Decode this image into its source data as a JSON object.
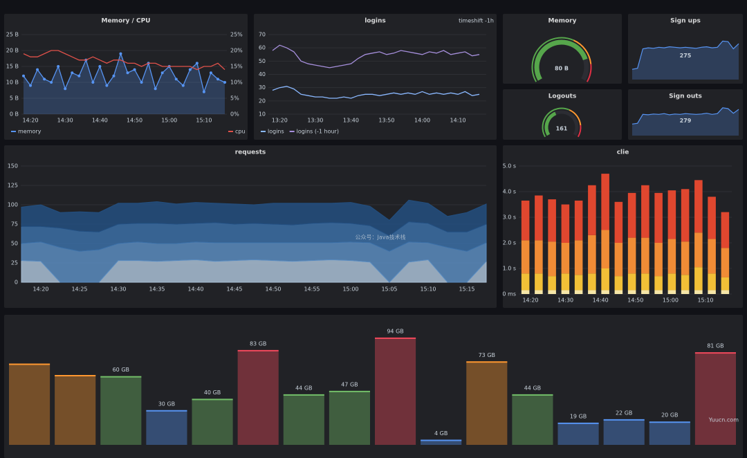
{
  "chart_data": [
    {
      "type": "line",
      "title": "Memory / CPU",
      "legend": "bottom",
      "grid": true,
      "categories": [
        null,
        "14:20",
        null,
        null,
        null,
        null,
        "14:30",
        null,
        null,
        null,
        null,
        "14:40",
        null,
        null,
        null,
        null,
        "14:50",
        null,
        null,
        null,
        null,
        "15:00",
        null,
        null,
        null,
        null,
        "15:10",
        null,
        null,
        null
      ],
      "ylim": [
        0,
        25
      ],
      "yticks": [
        {
          "value": 0,
          "label": "0 B"
        },
        {
          "value": 5,
          "label": "5 B"
        },
        {
          "value": 10,
          "label": "10 B"
        },
        {
          "value": 15,
          "label": "15 B"
        },
        {
          "value": 20,
          "label": "20 B"
        },
        {
          "value": 25,
          "label": "25 B"
        }
      ],
      "y2lim": [
        0,
        25
      ],
      "y2ticks": [
        {
          "value": 0,
          "label": "0%"
        },
        {
          "value": 5,
          "label": "5%"
        },
        {
          "value": 10,
          "label": "10%"
        },
        {
          "value": 15,
          "label": "15%"
        },
        {
          "value": 20,
          "label": "20%"
        },
        {
          "value": 25,
          "label": "25%"
        }
      ],
      "series": [
        {
          "name": "memory",
          "color": "#5794f2",
          "fill": true,
          "points": true,
          "values": [
            12,
            9,
            14,
            11,
            10,
            15,
            8,
            13,
            12,
            17,
            10,
            15,
            9,
            12,
            19,
            13,
            14,
            10,
            16,
            8,
            13,
            15,
            11,
            9,
            14,
            16,
            7,
            13,
            11,
            10
          ]
        },
        {
          "name": "cpu",
          "color": "#e0514a",
          "axis": "y2",
          "values": [
            19,
            18,
            18,
            19,
            20,
            20,
            19,
            18,
            17,
            17,
            18,
            17,
            16,
            17,
            17,
            16,
            16,
            15,
            16,
            16,
            15,
            15,
            15,
            15,
            15,
            14,
            15,
            15,
            16,
            14
          ]
        }
      ]
    },
    {
      "type": "line",
      "title": "logins",
      "annotation": "timeshift -1h",
      "legend": "bottom",
      "grid": true,
      "categories": [
        null,
        "13:20",
        null,
        null,
        null,
        null,
        "13:30",
        null,
        null,
        null,
        null,
        "13:40",
        null,
        null,
        null,
        null,
        "13:50",
        null,
        null,
        null,
        null,
        "14:00",
        null,
        null,
        null,
        null,
        "14:10",
        null,
        null,
        null
      ],
      "ylim": [
        10,
        70
      ],
      "yticks": [
        10,
        20,
        30,
        40,
        50,
        60,
        70
      ],
      "series": [
        {
          "name": "logins",
          "color": "#8ab8ff",
          "values": [
            28,
            30,
            31,
            29,
            25,
            24,
            23,
            23,
            22,
            22,
            23,
            22,
            24,
            25,
            25,
            24,
            25,
            26,
            25,
            26,
            25,
            27,
            25,
            26,
            25,
            26,
            25,
            27,
            24,
            25
          ]
        },
        {
          "name": "logins (-1 hour)",
          "color": "#a68fdc",
          "values": [
            58,
            62,
            60,
            57,
            50,
            48,
            47,
            46,
            45,
            46,
            47,
            48,
            52,
            55,
            56,
            57,
            55,
            56,
            58,
            57,
            56,
            55,
            57,
            56,
            58,
            55,
            56,
            57,
            54,
            55
          ]
        }
      ]
    },
    {
      "type": "gauge",
      "title": "Memory",
      "value": 80,
      "value_label": "80 B",
      "ylim": [
        0,
        100
      ],
      "color": "#56a64b"
    },
    {
      "type": "stat",
      "title": "Sign ups",
      "value": 275,
      "color": "#56a64b",
      "spark_color": "#5794f2",
      "spark": [
        20,
        22,
        60,
        62,
        61,
        63,
        62,
        64,
        63,
        62,
        63,
        62,
        61,
        63,
        64,
        62,
        63,
        75,
        74,
        60,
        70
      ]
    },
    {
      "type": "gauge",
      "title": "Logouts",
      "value": 161,
      "value_label": "161",
      "ylim": [
        0,
        400
      ],
      "color": "#56a64b"
    },
    {
      "type": "stat",
      "title": "Sign outs",
      "value": 279,
      "color": "#56a64b",
      "spark_color": "#5794f2",
      "spark": [
        30,
        32,
        55,
        54,
        56,
        55,
        57,
        54,
        56,
        55,
        57,
        56,
        55,
        56,
        58,
        55,
        57,
        72,
        70,
        58,
        68
      ]
    },
    {
      "type": "area",
      "title": "requests",
      "stacked": true,
      "grid": true,
      "categories": [
        null,
        "14:20",
        null,
        "14:25",
        null,
        "14:30",
        null,
        "14:35",
        null,
        "14:40",
        null,
        "14:45",
        null,
        "14:50",
        null,
        "14:55",
        null,
        "15:00",
        null,
        "15:05",
        null,
        "15:10",
        null,
        "15:15",
        null
      ],
      "ylim": [
        0,
        150
      ],
      "yticks": [
        0,
        25,
        50,
        75,
        100,
        125,
        150
      ],
      "series": [
        {
          "color": "#a9bfd6",
          "values": [
            28,
            27,
            0,
            0,
            0,
            28,
            28,
            27,
            28,
            29,
            27,
            28,
            29,
            28,
            27,
            28,
            29,
            28,
            26,
            0,
            26,
            29,
            0,
            0,
            27
          ]
        },
        {
          "color": "#5a8cc0",
          "values": [
            22,
            25,
            45,
            40,
            42,
            22,
            24,
            23,
            22,
            23,
            24,
            23,
            22,
            23,
            24,
            23,
            22,
            24,
            25,
            40,
            26,
            22,
            45,
            40,
            24
          ]
        },
        {
          "color": "#3b6fa6",
          "values": [
            22,
            20,
            25,
            26,
            23,
            25,
            24,
            26,
            25,
            24,
            26,
            24,
            25,
            24,
            23,
            25,
            26,
            24,
            22,
            20,
            26,
            25,
            20,
            25,
            24
          ]
        },
        {
          "color": "#234f80",
          "values": [
            25,
            28,
            20,
            25,
            25,
            27,
            26,
            28,
            26,
            27,
            25,
            26,
            24,
            27,
            28,
            26,
            25,
            27,
            25,
            20,
            28,
            26,
            20,
            25,
            26
          ]
        }
      ]
    },
    {
      "type": "bar",
      "title": "clie",
      "stacked": true,
      "grid": true,
      "xticks": [
        "14:20",
        "14:30",
        "14:40",
        "14:50",
        "15:00",
        "15:10"
      ],
      "ylim": [
        0,
        5
      ],
      "yticks": [
        {
          "value": 0,
          "label": "0 ms"
        },
        {
          "value": 1,
          "label": "1.0 s"
        },
        {
          "value": 2,
          "label": "2.0 s"
        },
        {
          "value": 3,
          "label": "3.0 s"
        },
        {
          "value": 4,
          "label": "4.0 s"
        },
        {
          "value": 5,
          "label": "5.0 s"
        }
      ],
      "series": [
        {
          "color": "#f5e6a8",
          "values": [
            0.15,
            0.15,
            0.15,
            0.15,
            0.15,
            0.15,
            0.15,
            0.15,
            0.15,
            0.15,
            0.15,
            0.15,
            0.15,
            0.15,
            0.15,
            0.15
          ]
        },
        {
          "color": "#f2c037",
          "values": [
            0.65,
            0.65,
            0.55,
            0.65,
            0.6,
            0.65,
            0.85,
            0.55,
            0.65,
            0.65,
            0.55,
            0.65,
            0.6,
            0.9,
            0.65,
            0.5
          ]
        },
        {
          "color": "#f08c36",
          "values": [
            1.3,
            1.3,
            1.35,
            1.2,
            1.35,
            1.5,
            1.5,
            1.3,
            1.4,
            1.4,
            1.3,
            1.35,
            1.3,
            1.35,
            1.35,
            1.15
          ]
        },
        {
          "color": "#e0472f",
          "values": [
            1.55,
            1.75,
            1.65,
            1.5,
            1.55,
            1.95,
            2.2,
            1.6,
            1.75,
            2.05,
            1.95,
            1.9,
            2.05,
            2.05,
            1.65,
            1.4
          ]
        }
      ]
    },
    {
      "type": "bargauge",
      "ylim": [
        0,
        100
      ],
      "values": [
        71,
        61,
        60,
        30,
        40,
        83,
        44,
        47,
        94,
        4,
        73,
        44,
        19,
        22,
        20,
        81
      ],
      "value_labels": [
        null,
        null,
        "60 GB",
        "30 GB",
        "40 GB",
        "83 GB",
        "44 GB",
        "47 GB",
        "94 GB",
        "4 GB",
        "73 GB",
        "44 GB",
        "19 GB",
        "22 GB",
        "20 GB",
        "81 GB"
      ],
      "colors": [
        "#ff9830",
        "#ff9830",
        "#73bf69",
        "#5794f2",
        "#73bf69",
        "#f2495c",
        "#73bf69",
        "#73bf69",
        "#f2495c",
        "#5794f2",
        "#ff9830",
        "#73bf69",
        "#5794f2",
        "#5794f2",
        "#5794f2",
        "#f2495c"
      ]
    }
  ],
  "watermarks": [
    "公众号：Java技术栈",
    "Yuucn.com"
  ]
}
